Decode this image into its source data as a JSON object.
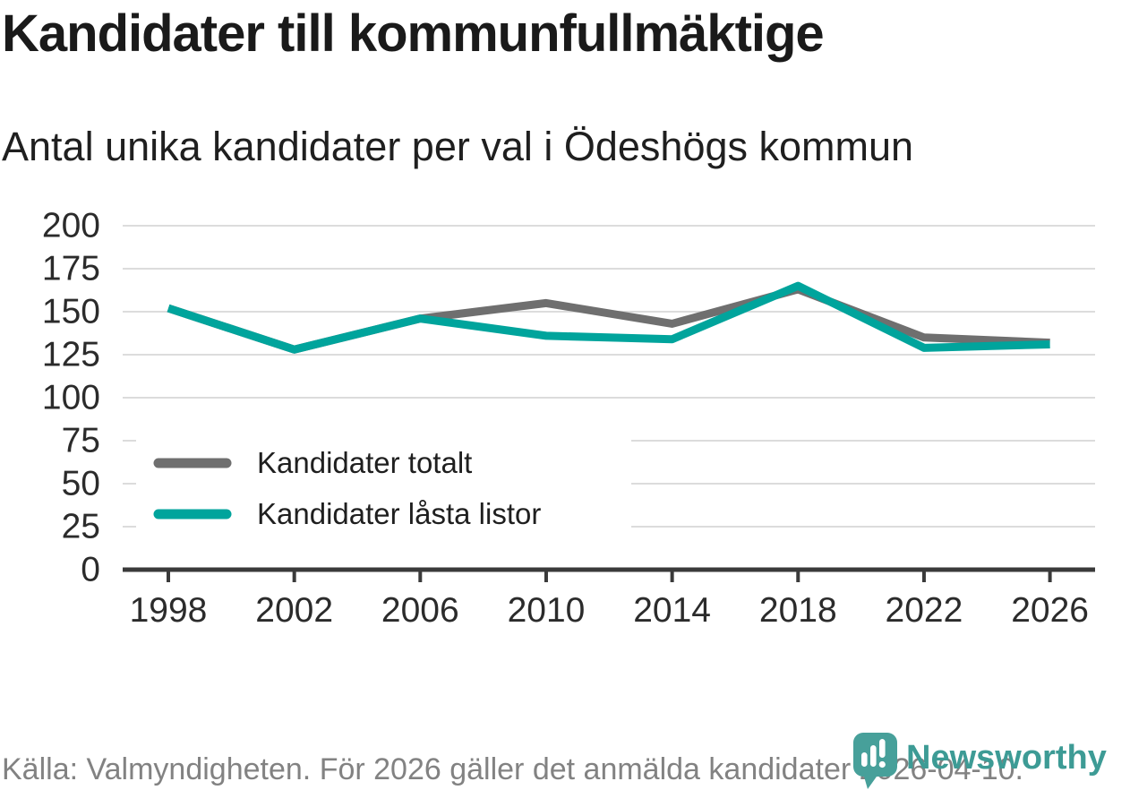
{
  "header": {
    "title": "Kandidater till kommunfullmäktige",
    "subtitle": "Antal unika kandidater per val i Ödeshögs kommun"
  },
  "chart_data": {
    "type": "line",
    "categories": [
      "1998",
      "2002",
      "2006",
      "2010",
      "2014",
      "2018",
      "2022",
      "2026"
    ],
    "series": [
      {
        "name": "Kandidater totalt",
        "color": "#6f6f6f",
        "values": [
          152,
          128,
          146,
          155,
          143,
          163,
          135,
          132
        ]
      },
      {
        "name": "Kandidater låsta listor",
        "color": "#00a49c",
        "values": [
          152,
          128,
          146,
          136,
          134,
          165,
          129,
          131
        ]
      }
    ],
    "xlabel": "",
    "ylabel": "",
    "ylim": [
      0,
      200
    ],
    "y_ticks": [
      0,
      25,
      50,
      75,
      100,
      125,
      150,
      175,
      200
    ],
    "grid": true,
    "legend_position": "inside-left-middle"
  },
  "footer": {
    "source": "Källa: Valmyndigheten. För 2026 gäller det anmälda kandidater 2026-04-10."
  },
  "branding": {
    "logo_text": "Newsworthy",
    "logo_color": "#3d9b95"
  },
  "colors": {
    "grid": "#dcdcdc",
    "axis": "#3a3a3a",
    "axis_text": "#2b2b2b",
    "legend_text": "#1f1f1f",
    "legend_background": "#ffffff",
    "accent_teal": "#00a49c",
    "accent_gray": "#6f6f6f"
  }
}
